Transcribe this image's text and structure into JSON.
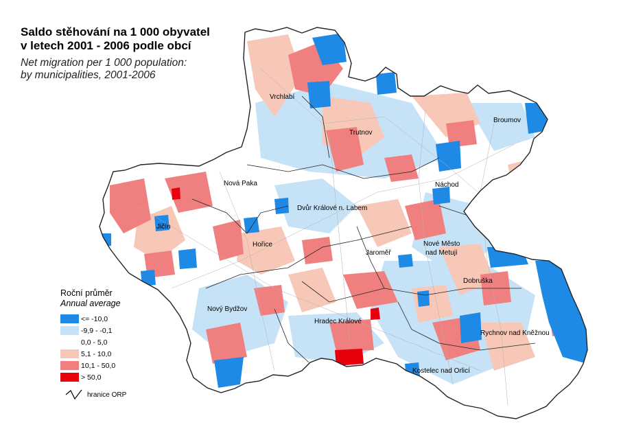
{
  "title_cz_line1": "Saldo stěhování na 1 000 obyvatel",
  "title_cz_line2": "v letech 2001 - 2006 podle obcí",
  "title_en_line1": "Net migration per 1 000 population:",
  "title_en_line2": "by municipalities, 2001-2006",
  "legend": {
    "title_cz": "Roční průměr",
    "title_en": "Annual average",
    "items": [
      {
        "label": "<= -10,0",
        "color": "#1e8ae6"
      },
      {
        "label": "-9,9 - -0,1",
        "color": "#c6e2f7"
      },
      {
        "label": "0,0 - 5,0",
        "color": "#ffffff"
      },
      {
        "label": "5,1 - 10,0",
        "color": "#f7c8b8"
      },
      {
        "label": "10,1 - 50,0",
        "color": "#f08080"
      },
      {
        "label": "> 50,0",
        "color": "#e8000c"
      }
    ],
    "boundary_label": "hranice ORP"
  },
  "cities": [
    "Vrchlabí",
    "Trutnov",
    "Broumov",
    "Nová Paka",
    "Náchod",
    "Dvůr Králové n. Labem",
    "Jičín",
    "Hořice",
    "Jaroměř",
    "Nové Město",
    "nad Metují",
    "Dobruška",
    "Nový Bydžov",
    "Hradec Králové",
    "Rychnov nad Kněžnou",
    "Kostelec nad Orlicí"
  ]
}
